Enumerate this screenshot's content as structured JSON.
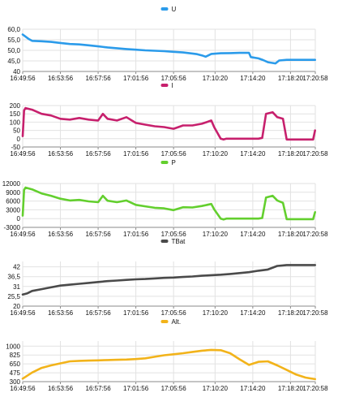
{
  "chart_data": [
    {
      "type": "line",
      "color": "#2b9bea",
      "xlim": [
        0,
        31.03
      ],
      "ylim": [
        40,
        60
      ],
      "yticks": [
        40,
        45,
        50,
        55,
        60
      ],
      "ytick_labels": [
        "40",
        "45,0",
        "50,0",
        "55,0",
        "60,0"
      ],
      "legend": "top-center",
      "series": [
        {
          "name": "U",
          "x": [
            0,
            0.6,
            1,
            2,
            3,
            4,
            5,
            6,
            7,
            8,
            9,
            10,
            11,
            12,
            13,
            14,
            15,
            16,
            17,
            18,
            18.5,
            19,
            19.4,
            20,
            21,
            22,
            23,
            24,
            24.2,
            25,
            25.5,
            26,
            26.8,
            27.2,
            28,
            29,
            30,
            31
          ],
          "y": [
            57.5,
            55.5,
            54.5,
            54.3,
            54,
            53.5,
            53,
            52.8,
            52.4,
            51.9,
            51.4,
            51,
            50.6,
            50.3,
            50,
            49.8,
            49.6,
            49.3,
            49,
            48.5,
            48.2,
            47.6,
            47,
            48.3,
            48.6,
            48.7,
            48.8,
            48.8,
            46.8,
            46.2,
            45.4,
            44.4,
            43.8,
            45.2,
            45.5,
            45.5,
            45.5,
            45.5
          ]
        }
      ],
      "xtick_labels": [
        "16:49:56",
        "16:53:56",
        "16:57:56",
        "17:01:56",
        "17:05:56",
        "17:10:20",
        "17:14:20",
        "17:18:20",
        "17:20:58"
      ]
    },
    {
      "type": "line",
      "color": "#c7206d",
      "xlim": [
        0,
        31.03
      ],
      "ylim": [
        -50,
        200
      ],
      "yticks": [
        -50,
        0,
        50,
        100,
        150,
        200
      ],
      "ytick_labels": [
        "-50",
        "0",
        "50",
        "100",
        "150",
        "200"
      ],
      "legend": "top-center",
      "series": [
        {
          "name": "I",
          "x": [
            0,
            0.15,
            0.3,
            1,
            2,
            3,
            4,
            5,
            6,
            7,
            8,
            8.5,
            9,
            10,
            11,
            12,
            13,
            14,
            15,
            16,
            17,
            18,
            19,
            20,
            20.3,
            21,
            21.3,
            21.6,
            22,
            23,
            24,
            25,
            25.4,
            25.8,
            26.5,
            27,
            27.6,
            28,
            29,
            30,
            30.8,
            31
          ],
          "y": [
            15,
            170,
            185,
            175,
            150,
            140,
            120,
            115,
            125,
            115,
            110,
            150,
            120,
            110,
            130,
            95,
            85,
            75,
            70,
            60,
            80,
            80,
            90,
            110,
            70,
            0,
            -5,
            0,
            0,
            0,
            0,
            0,
            5,
            150,
            160,
            130,
            120,
            -5,
            -5,
            -5,
            -5,
            50
          ]
        }
      ],
      "xtick_labels": [
        "16:49:56",
        "16:53:56",
        "16:57:56",
        "17:01:56",
        "17:05:56",
        "17:10:20",
        "17:14:20",
        "17:18:20",
        "17:20:58"
      ]
    },
    {
      "type": "line",
      "color": "#63cf2e",
      "xlim": [
        0,
        31.03
      ],
      "ylim": [
        -3000,
        12000
      ],
      "yticks": [
        -3000,
        0,
        3000,
        6000,
        9000,
        12000
      ],
      "ytick_labels": [
        "-3000",
        "0",
        "3000",
        "6000",
        "9000",
        "12000"
      ],
      "legend": "top-center",
      "series": [
        {
          "name": "P",
          "x": [
            0,
            0.15,
            0.3,
            1,
            2,
            3,
            4,
            5,
            6,
            7,
            8,
            8.5,
            9,
            10,
            11,
            12,
            13,
            14,
            15,
            16,
            17,
            18,
            19,
            20,
            20.3,
            21,
            21.3,
            21.6,
            22,
            23,
            24,
            25,
            25.4,
            25.8,
            26.5,
            27,
            27.6,
            28,
            29,
            30,
            30.8,
            31
          ],
          "y": [
            1000,
            9800,
            10600,
            10000,
            8600,
            7800,
            6800,
            6200,
            6400,
            5900,
            5600,
            7800,
            6100,
            5600,
            6200,
            4700,
            4200,
            3700,
            3500,
            2900,
            3900,
            3800,
            4300,
            5000,
            3200,
            0,
            -300,
            0,
            0,
            0,
            0,
            0,
            200,
            7200,
            7800,
            6200,
            5400,
            -200,
            -200,
            -200,
            -200,
            2200
          ]
        }
      ],
      "xtick_labels": [
        "16:49:56",
        "16:53:56",
        "16:57:56",
        "17:01:56",
        "17:05:56",
        "17:10:20",
        "17:14:20",
        "17:18:20",
        "17:20:58"
      ]
    },
    {
      "type": "line",
      "color": "#4a4a4a",
      "xlim": [
        0,
        31.03
      ],
      "ylim": [
        20,
        45
      ],
      "yticks": [
        20,
        25.5,
        31,
        36.5,
        42
      ],
      "ytick_labels": [
        "20",
        "25,5",
        "31",
        "36,5",
        "42"
      ],
      "legend": "top-center",
      "series": [
        {
          "name": "TBat",
          "x": [
            0,
            0.5,
            1,
            2,
            3,
            4,
            5,
            6,
            7,
            8,
            9,
            10,
            11,
            12,
            13,
            14,
            15,
            16,
            17,
            18,
            19,
            20,
            21,
            22,
            23,
            24,
            25,
            26,
            27,
            28,
            29,
            30,
            31
          ],
          "y": [
            26.5,
            27.2,
            28.5,
            29.5,
            30.5,
            31.5,
            32,
            32.5,
            33,
            33.5,
            34,
            34.3,
            34.7,
            35,
            35.2,
            35.5,
            35.8,
            36,
            36.3,
            36.6,
            37,
            37.3,
            37.6,
            38,
            38.5,
            39,
            39.8,
            40.5,
            42.5,
            43,
            43,
            43,
            43
          ]
        }
      ],
      "xtick_labels": [
        "16:49:56",
        "16:53:56",
        "16:57:56",
        "17:01:56",
        "17:05:56",
        "17:10:20",
        "17:14:20",
        "17:18:20",
        "17:20:58"
      ]
    },
    {
      "type": "line",
      "color": "#f2b31a",
      "xlim": [
        0,
        31.03
      ],
      "ylim": [
        300,
        1100
      ],
      "yticks": [
        300,
        475,
        650,
        825,
        1000
      ],
      "ytick_labels": [
        "300",
        "475",
        "650",
        "825",
        "1000"
      ],
      "legend": "top-center",
      "series": [
        {
          "name": "Alt.",
          "x": [
            0,
            1,
            2,
            3,
            4,
            5,
            6,
            7,
            8,
            9,
            10,
            11,
            12,
            13,
            14,
            15,
            16,
            17,
            18,
            19,
            20,
            21,
            22,
            23,
            24,
            25,
            26,
            27,
            28,
            29,
            30,
            31
          ],
          "y": [
            360,
            480,
            570,
            620,
            660,
            700,
            710,
            715,
            720,
            725,
            730,
            735,
            745,
            760,
            790,
            820,
            840,
            860,
            885,
            910,
            925,
            920,
            860,
            740,
            630,
            690,
            700,
            620,
            530,
            440,
            380,
            350
          ]
        }
      ],
      "xtick_labels": [
        "16:49:56",
        "16:53:56",
        "16:57:56",
        "17:01:56",
        "17:05:56",
        "17:10:20",
        "17:14:20",
        "17:18:20",
        "17:20:58"
      ]
    }
  ]
}
